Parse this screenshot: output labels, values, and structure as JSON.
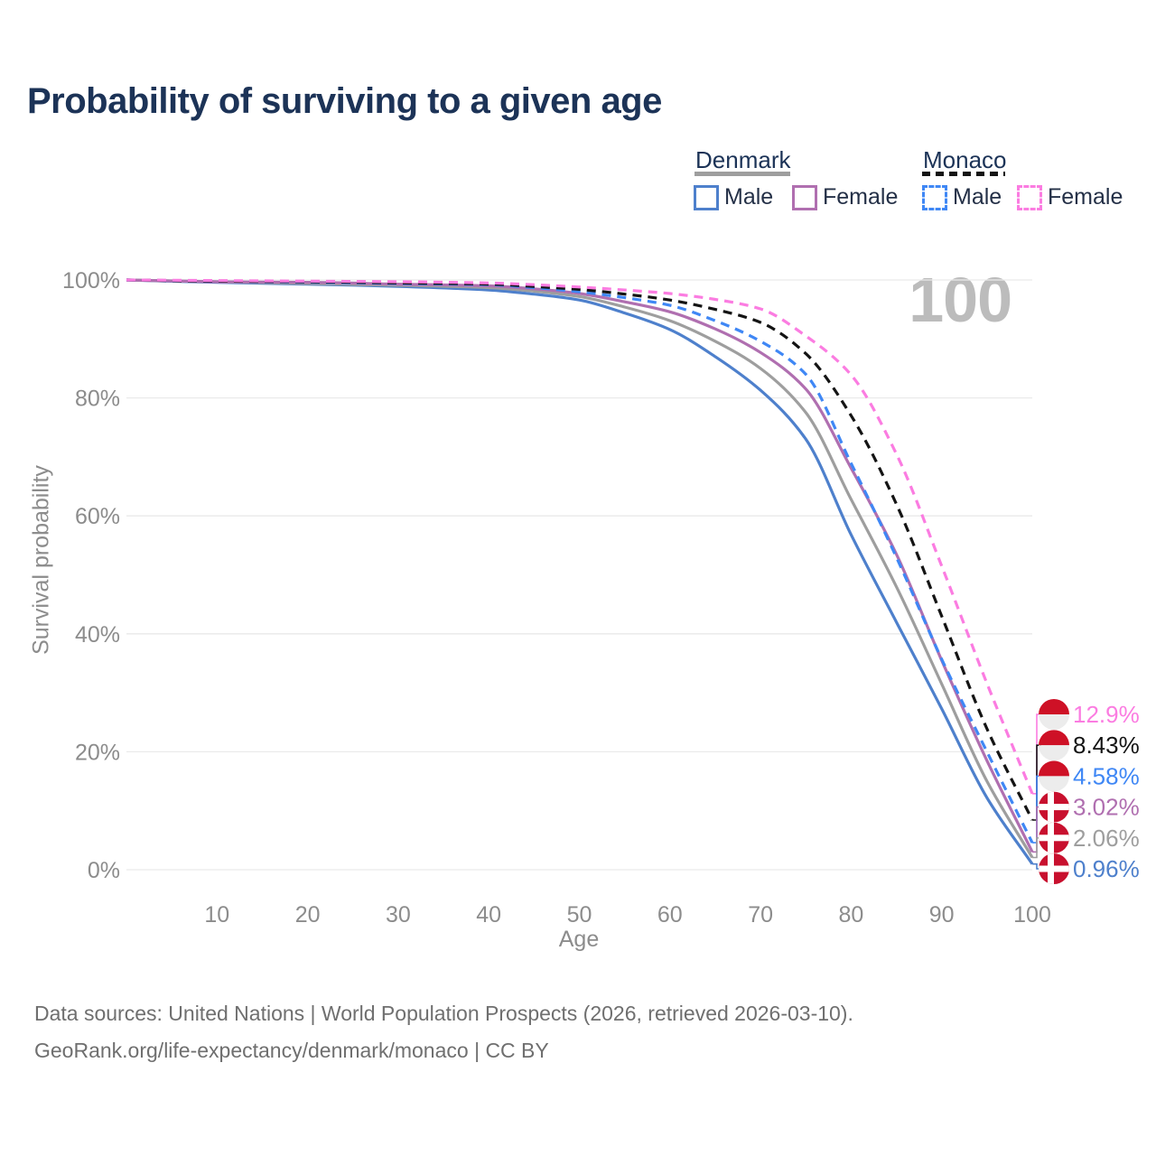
{
  "title": "Probability of surviving to a given age",
  "watermark_age": "100",
  "colors": {
    "title_text": "#1c3357",
    "axis_text": "#8c8c8c",
    "gridline": "#eaeaea",
    "watermark": "#bcbcbc",
    "footer_text": "#6f6f6f",
    "denmark_male": "#4e80cc",
    "denmark_female": "#b06fb0",
    "denmark_total": "#9e9e9e",
    "monaco_male": "#3f87f5",
    "monaco_female": "#fb7ce1",
    "monaco_total": "#141414",
    "flag_denmark_red": "#c8102e",
    "flag_monaco_red": "#ce1126"
  },
  "legend": {
    "groups": [
      {
        "name": "Denmark",
        "underline_style": "solid",
        "underline_color": "#9e9e9e",
        "items": [
          {
            "label": "Male",
            "color": "#4e80cc",
            "dashed": false
          },
          {
            "label": "Female",
            "color": "#b06fb0",
            "dashed": false
          }
        ]
      },
      {
        "name": "Monaco",
        "underline_style": "dashed",
        "underline_color": "#141414",
        "items": [
          {
            "label": "Male",
            "color": "#3f87f5",
            "dashed": true
          },
          {
            "label": "Female",
            "color": "#fb7ce1",
            "dashed": true
          }
        ]
      }
    ]
  },
  "chart_data": {
    "type": "line",
    "title": "Probability of surviving to a given age",
    "xlabel": "Age",
    "ylabel": "Survival probability",
    "xlim": [
      0,
      100
    ],
    "ylim": [
      0,
      100
    ],
    "grid": "horizontal",
    "legend_position": "top-right",
    "x_ticks": [
      10,
      20,
      30,
      40,
      50,
      60,
      70,
      80,
      90,
      100
    ],
    "x_tick_labels": [
      "10",
      "20",
      "30",
      "40",
      "50",
      "60",
      "70",
      "80",
      "90",
      "100"
    ],
    "y_ticks": [
      0,
      20,
      40,
      60,
      80,
      100
    ],
    "y_tick_labels": [
      "0%",
      "20%",
      "40%",
      "60%",
      "80%",
      "100%"
    ],
    "x": [
      0,
      10,
      20,
      30,
      40,
      45,
      50,
      55,
      60,
      65,
      70,
      75,
      80,
      85,
      90,
      95,
      100
    ],
    "series": [
      {
        "name": "Denmark Male",
        "country": "Denmark",
        "sex": "Male",
        "color": "#4e80cc",
        "dashed": false,
        "flag": "denmark",
        "end_label": "0.96%",
        "values": [
          100,
          99.6,
          99.3,
          98.9,
          98.3,
          97.6,
          96.6,
          94.4,
          91.6,
          87.0,
          81.3,
          73.0,
          56.8,
          42.0,
          27.3,
          12.2,
          0.96
        ]
      },
      {
        "name": "Denmark Both sexes",
        "country": "Denmark",
        "sex": "Both",
        "color": "#9e9e9e",
        "dashed": false,
        "flag": "denmark",
        "end_label": "2.06%",
        "values": [
          100,
          99.7,
          99.4,
          99.1,
          98.7,
          98.1,
          97.2,
          95.4,
          93.1,
          89.6,
          85.0,
          77.5,
          62.8,
          48.0,
          31.5,
          15.0,
          2.06
        ]
      },
      {
        "name": "Denmark Female",
        "country": "Denmark",
        "sex": "Female",
        "color": "#b06fb0",
        "dashed": false,
        "flag": "denmark",
        "end_label": "3.02%",
        "values": [
          100,
          99.7,
          99.6,
          99.3,
          99.0,
          98.5,
          97.7,
          96.3,
          94.6,
          91.7,
          87.7,
          81.5,
          68.1,
          53.5,
          35.5,
          18.5,
          3.02
        ]
      },
      {
        "name": "Monaco Male",
        "country": "Monaco",
        "sex": "Male",
        "color": "#3f87f5",
        "dashed": true,
        "flag": "monaco",
        "end_label": "4.58%",
        "values": [
          100,
          99.8,
          99.6,
          99.4,
          99.2,
          98.7,
          98.0,
          97.0,
          95.7,
          93.1,
          89.6,
          84.0,
          68.9,
          53.0,
          35.7,
          20.0,
          4.58
        ]
      },
      {
        "name": "Monaco Both sexes",
        "country": "Monaco",
        "sex": "Both",
        "color": "#141414",
        "dashed": true,
        "flag": "monaco",
        "end_label": "8.43%",
        "values": [
          100,
          99.8,
          99.7,
          99.5,
          99.3,
          98.9,
          98.4,
          97.6,
          96.6,
          95.0,
          92.8,
          87.5,
          77.0,
          62.0,
          43.0,
          23.9,
          8.43
        ]
      },
      {
        "name": "Monaco Female",
        "country": "Monaco",
        "sex": "Female",
        "color": "#fb7ce1",
        "dashed": true,
        "flag": "monaco",
        "end_label": "12.9%",
        "values": [
          100,
          99.9,
          99.8,
          99.7,
          99.5,
          99.2,
          98.8,
          98.3,
          97.7,
          96.7,
          95.1,
          90.5,
          83.9,
          70.5,
          51.5,
          31.6,
          12.9
        ]
      }
    ]
  },
  "footer": {
    "line1": "Data sources: United Nations | World Population Prospects (2026, retrieved 2026-03-10).",
    "line2": "GeoRank.org/life-expectancy/denmark/monaco | CC BY"
  }
}
